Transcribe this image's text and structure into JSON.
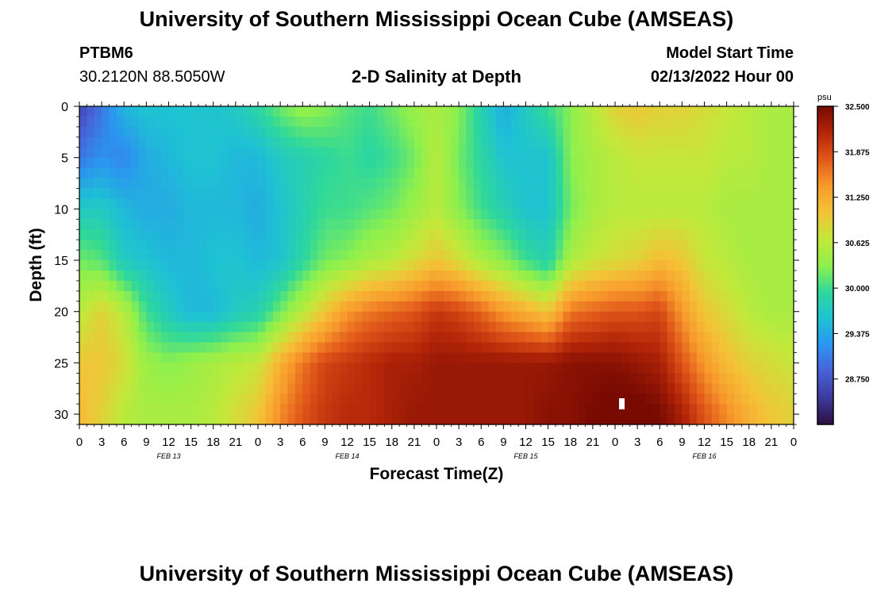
{
  "header": {
    "title": "University of Southern Mississippi Ocean Cube (AMSEAS)",
    "station_name": "PTBM6",
    "station_coords": "30.2120N  88.5050W",
    "model_start_label": "Model Start Time",
    "model_start_value": "02/13/2022 Hour 00"
  },
  "footer": {
    "title": "University of Southern Mississippi Ocean Cube (AMSEAS)"
  },
  "chart_data": {
    "type": "heatmap",
    "title": "2-D Salinity at Depth",
    "xlabel": "Forecast Time(Z)",
    "ylabel": "Depth (ft)",
    "xlim": [
      0,
      96
    ],
    "ylim": [
      0,
      31
    ],
    "x_ticks": [
      {
        "hour": 0,
        "label": "0"
      },
      {
        "hour": 3,
        "label": "3"
      },
      {
        "hour": 6,
        "label": "6"
      },
      {
        "hour": 9,
        "label": "9"
      },
      {
        "hour": 12,
        "label": "12"
      },
      {
        "hour": 15,
        "label": "15"
      },
      {
        "hour": 18,
        "label": "18"
      },
      {
        "hour": 21,
        "label": "21"
      },
      {
        "hour": 24,
        "label": "0"
      },
      {
        "hour": 27,
        "label": "3"
      },
      {
        "hour": 30,
        "label": "6"
      },
      {
        "hour": 33,
        "label": "9"
      },
      {
        "hour": 36,
        "label": "12"
      },
      {
        "hour": 39,
        "label": "15"
      },
      {
        "hour": 42,
        "label": "18"
      },
      {
        "hour": 45,
        "label": "21"
      },
      {
        "hour": 48,
        "label": "0"
      },
      {
        "hour": 51,
        "label": "3"
      },
      {
        "hour": 54,
        "label": "6"
      },
      {
        "hour": 57,
        "label": "9"
      },
      {
        "hour": 60,
        "label": "12"
      },
      {
        "hour": 63,
        "label": "15"
      },
      {
        "hour": 66,
        "label": "18"
      },
      {
        "hour": 69,
        "label": "21"
      },
      {
        "hour": 72,
        "label": "0"
      },
      {
        "hour": 75,
        "label": "3"
      },
      {
        "hour": 78,
        "label": "6"
      },
      {
        "hour": 81,
        "label": "9"
      },
      {
        "hour": 84,
        "label": "12"
      },
      {
        "hour": 87,
        "label": "15"
      },
      {
        "hour": 90,
        "label": "18"
      },
      {
        "hour": 93,
        "label": "21"
      },
      {
        "hour": 96,
        "label": "0"
      }
    ],
    "date_labels": [
      {
        "hour": 12,
        "label": "FEB 13"
      },
      {
        "hour": 36,
        "label": "FEB 14"
      },
      {
        "hour": 60,
        "label": "FEB 15"
      },
      {
        "hour": 84,
        "label": "FEB 16"
      }
    ],
    "y_ticks": [
      0,
      5,
      10,
      15,
      20,
      25,
      30
    ],
    "colorbar": {
      "unit": "psu",
      "min": 28.125,
      "max": 32.5,
      "tick_values": [
        32.5,
        31.875,
        31.25,
        30.625,
        30.0,
        29.375,
        28.75
      ],
      "tick_labels": [
        "32.500",
        "31.875",
        "31.250",
        "30.625",
        "30.000",
        "29.375",
        "28.750"
      ],
      "colors": [
        "#2b0f3e",
        "#3d3a9e",
        "#4862d6",
        "#2b95f0",
        "#1ec2d3",
        "#2fd89a",
        "#8ef04c",
        "#c3e83a",
        "#f4c237",
        "#f89a2c",
        "#e1581a",
        "#b22508",
        "#780a02"
      ]
    },
    "time_hours": [
      0,
      3,
      6,
      9,
      12,
      15,
      18,
      21,
      24,
      27,
      30,
      33,
      36,
      39,
      42,
      45,
      48,
      51,
      54,
      57,
      60,
      63,
      66,
      69,
      72,
      75,
      78,
      81,
      84,
      87,
      90,
      93,
      96
    ],
    "depth_ft": [
      0,
      5,
      10,
      15,
      20,
      25,
      30
    ],
    "salinity_psu": [
      [
        28.6,
        29.0,
        29.5,
        29.6,
        29.6,
        29.6,
        29.6,
        29.7,
        29.9,
        30.2,
        30.4,
        30.3,
        30.1,
        30.0,
        30.2,
        30.4,
        30.5,
        30.3,
        29.8,
        29.4,
        29.7,
        30.0,
        30.3,
        30.6,
        30.9,
        31.0,
        30.9,
        30.9,
        30.8,
        30.7,
        30.6,
        30.5,
        30.5
      ],
      [
        29.0,
        29.2,
        29.1,
        29.4,
        29.5,
        29.6,
        29.6,
        29.5,
        29.5,
        29.7,
        29.8,
        29.9,
        30.0,
        29.9,
        30.0,
        30.2,
        30.6,
        30.2,
        29.9,
        29.6,
        29.6,
        29.6,
        30.3,
        30.5,
        30.6,
        30.7,
        30.7,
        30.7,
        30.7,
        30.6,
        30.6,
        30.5,
        30.5
      ],
      [
        29.7,
        29.7,
        29.5,
        29.4,
        29.4,
        29.5,
        29.5,
        29.5,
        29.4,
        29.6,
        29.8,
        30.0,
        30.0,
        30.1,
        30.2,
        30.4,
        30.6,
        30.3,
        30.0,
        29.8,
        29.6,
        29.6,
        30.2,
        30.5,
        30.6,
        30.6,
        30.6,
        30.6,
        30.6,
        30.5,
        30.5,
        30.5,
        30.5
      ],
      [
        30.2,
        30.1,
        29.7,
        29.6,
        29.5,
        29.5,
        29.6,
        29.6,
        29.5,
        29.6,
        29.9,
        30.2,
        30.3,
        30.5,
        30.6,
        30.8,
        31.0,
        30.8,
        30.5,
        30.3,
        30.0,
        29.8,
        30.5,
        30.7,
        30.8,
        30.9,
        31.1,
        31.0,
        30.7,
        30.6,
        30.5,
        30.5,
        30.5
      ],
      [
        30.6,
        30.9,
        30.6,
        30.0,
        29.7,
        29.5,
        29.5,
        29.7,
        29.8,
        30.2,
        30.6,
        31.0,
        31.4,
        31.6,
        31.7,
        31.8,
        32.0,
        31.9,
        31.7,
        31.4,
        31.2,
        31.0,
        31.6,
        31.7,
        31.8,
        31.8,
        31.9,
        31.4,
        31.0,
        30.8,
        30.6,
        30.5,
        30.5
      ],
      [
        31.0,
        31.0,
        30.8,
        30.4,
        30.3,
        30.4,
        30.5,
        30.6,
        30.7,
        31.2,
        31.6,
        31.9,
        32.0,
        32.1,
        32.2,
        32.2,
        32.3,
        32.3,
        32.3,
        32.3,
        32.3,
        32.3,
        32.4,
        32.4,
        32.4,
        32.3,
        32.2,
        31.8,
        31.4,
        31.1,
        30.9,
        30.8,
        30.7
      ],
      [
        31.1,
        30.9,
        30.6,
        30.5,
        30.5,
        30.5,
        30.6,
        30.8,
        31.0,
        31.5,
        31.8,
        32.0,
        32.1,
        32.1,
        32.2,
        32.3,
        32.3,
        32.3,
        32.3,
        32.3,
        32.3,
        32.4,
        32.4,
        32.5,
        32.6,
        32.6,
        32.5,
        32.2,
        31.8,
        31.5,
        31.2,
        31.0,
        30.9
      ]
    ]
  }
}
